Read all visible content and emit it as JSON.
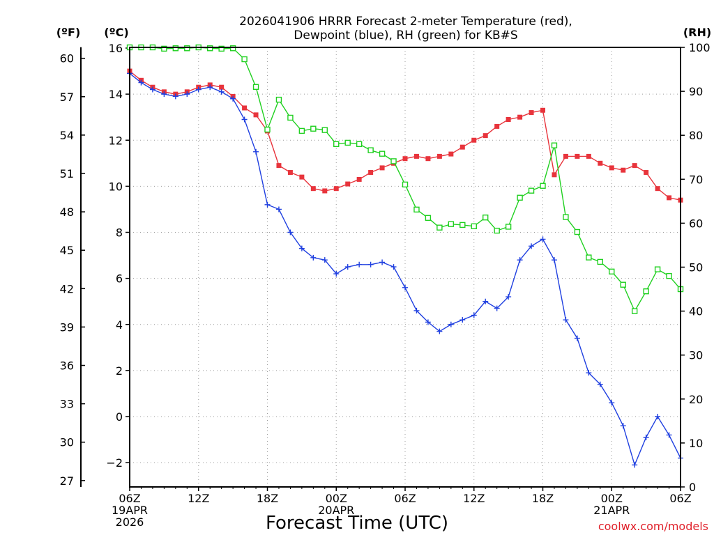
{
  "chart_data": {
    "type": "line",
    "title_lines": [
      "2026041906 HRRR Forecast 2-meter Temperature (red),",
      "Dewpoint (blue), RH (green) for KB#S"
    ],
    "xlabel": "Forecast Time (UTC)",
    "credit": "coolwx.com/models",
    "units": {
      "left_outer": "(ºF)",
      "left_inner": "(ºC)",
      "right": "(RH)"
    },
    "x_range": [
      0,
      48
    ],
    "x_ticks": [
      {
        "hour": 0,
        "labels": [
          "06Z",
          "19APR",
          "2026"
        ]
      },
      {
        "hour": 6,
        "labels": [
          "12Z"
        ]
      },
      {
        "hour": 12,
        "labels": [
          "18Z"
        ]
      },
      {
        "hour": 18,
        "labels": [
          "00Z",
          "20APR"
        ]
      },
      {
        "hour": 24,
        "labels": [
          "06Z"
        ]
      },
      {
        "hour": 30,
        "labels": [
          "12Z"
        ]
      },
      {
        "hour": 36,
        "labels": [
          "18Z"
        ]
      },
      {
        "hour": 42,
        "labels": [
          "00Z",
          "21APR"
        ]
      },
      {
        "hour": 48,
        "labels": [
          "06Z"
        ]
      }
    ],
    "y_celsius": {
      "range": [
        -3,
        16
      ],
      "ticks": [
        "16",
        "14",
        "12",
        "10",
        "8",
        "6",
        "4",
        "2",
        "0",
        "−2"
      ],
      "tick_values": [
        16,
        14,
        12,
        10,
        8,
        6,
        4,
        2,
        0,
        -2
      ]
    },
    "y_fahrenheit": {
      "ticks": [
        "60",
        "57",
        "54",
        "51",
        "48",
        "45",
        "42",
        "39",
        "36",
        "33",
        "30",
        "27"
      ],
      "tick_values": [
        60,
        57,
        54,
        51,
        48,
        45,
        42,
        39,
        36,
        33,
        30,
        27
      ]
    },
    "y_rh": {
      "range": [
        0,
        100
      ],
      "ticks": [
        "100",
        "90",
        "80",
        "70",
        "60",
        "50",
        "40",
        "30",
        "20",
        "10",
        "0"
      ],
      "tick_values": [
        100,
        90,
        80,
        70,
        60,
        50,
        40,
        30,
        20,
        10,
        0
      ]
    },
    "grid": true,
    "series": [
      {
        "name": "Temperature",
        "unit": "C",
        "color": "#e8343c",
        "marker": "filled-square",
        "values": [
          15.0,
          14.6,
          14.3,
          14.1,
          14.0,
          14.1,
          14.3,
          14.4,
          14.3,
          13.9,
          13.4,
          13.1,
          12.4,
          10.9,
          10.6,
          10.4,
          9.9,
          9.8,
          9.9,
          10.1,
          10.3,
          10.6,
          10.8,
          11.0,
          11.2,
          11.3,
          11.2,
          11.3,
          11.4,
          11.7,
          12.0,
          12.2,
          12.6,
          12.9,
          13.0,
          13.2,
          13.3,
          10.5,
          11.3,
          11.3,
          11.3,
          11.0,
          10.8,
          10.7,
          10.9,
          10.6,
          9.9,
          9.5,
          9.4
        ]
      },
      {
        "name": "Dewpoint",
        "unit": "C",
        "color": "#2040e0",
        "marker": "plus",
        "values": [
          14.9,
          14.5,
          14.2,
          14.0,
          13.9,
          14.0,
          14.2,
          14.3,
          14.1,
          13.8,
          12.9,
          11.5,
          9.2,
          9.0,
          8.0,
          7.3,
          6.9,
          6.8,
          6.2,
          6.5,
          6.6,
          6.6,
          6.7,
          6.5,
          5.6,
          4.6,
          4.1,
          3.7,
          4.0,
          4.2,
          4.4,
          5.0,
          4.7,
          5.2,
          6.8,
          7.4,
          7.7,
          6.8,
          4.2,
          3.4,
          1.9,
          1.4,
          0.6,
          -0.4,
          -2.1,
          -0.9,
          -0.0,
          -0.8,
          -1.8
        ]
      },
      {
        "name": "RH",
        "unit": "%",
        "color": "#20d020",
        "marker": "open-square",
        "values": [
          100,
          100,
          100,
          99.7,
          99.8,
          99.8,
          100,
          99.8,
          99.7,
          99.8,
          97.3,
          91.0,
          81.3,
          88.1,
          84.0,
          81.0,
          81.5,
          81.2,
          78.0,
          78.3,
          78.0,
          76.6,
          75.8,
          74.1,
          68.8,
          63.1,
          61.2,
          59.0,
          59.8,
          59.6,
          59.3,
          61.3,
          58.3,
          59.2,
          65.8,
          67.4,
          68.5,
          77.7,
          61.4,
          58.0,
          52.2,
          51.2,
          49.0,
          46.0,
          40.0,
          44.5,
          49.5,
          48.0,
          45.0
        ]
      }
    ]
  }
}
